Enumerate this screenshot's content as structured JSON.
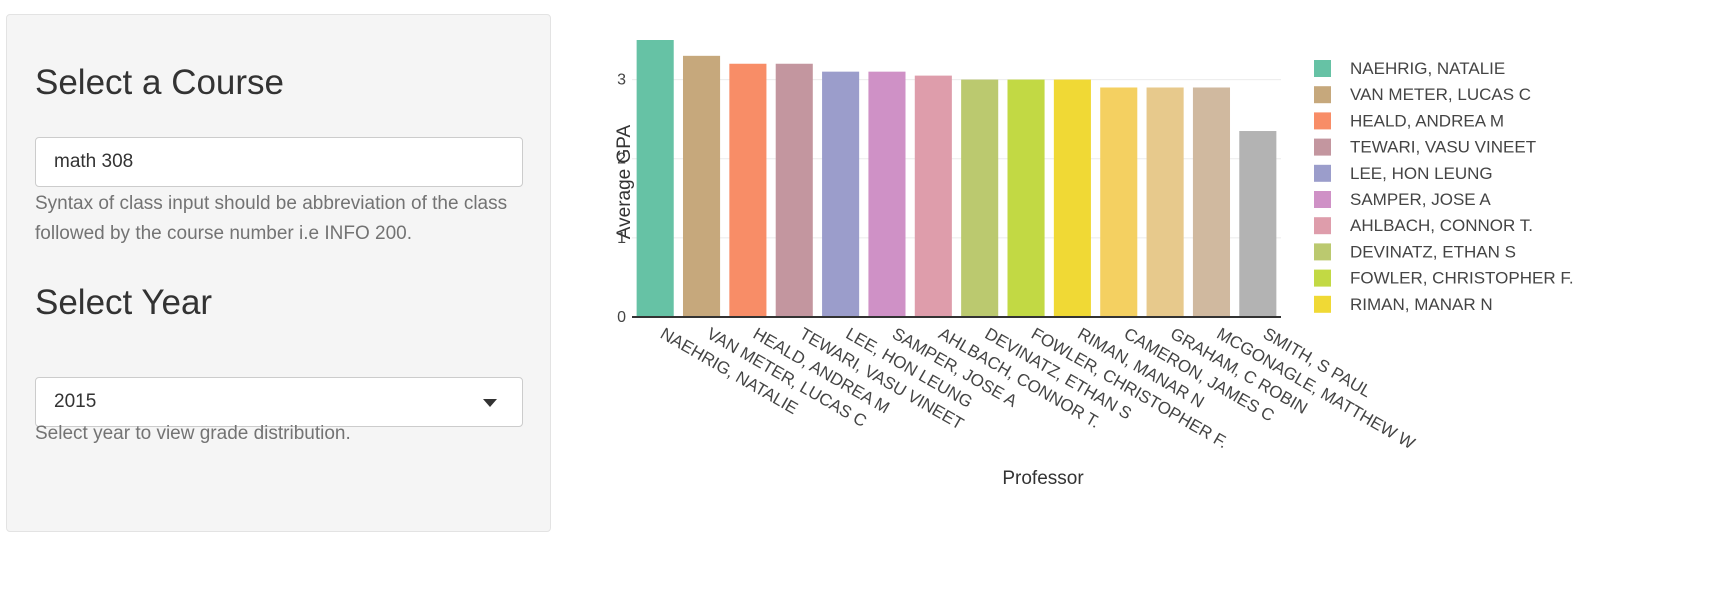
{
  "sidebar": {
    "course_heading": "Select a Course",
    "course_input_value": "math 308",
    "course_help": "Syntax of class input should be abbreviation of the class followed by the course number i.e INFO 200.",
    "year_heading": "Select Year",
    "year_selected": "2015",
    "year_help": "Select year to view grade distribution."
  },
  "chart_data": {
    "type": "bar",
    "xlabel": "Professor",
    "ylabel": "Average GPA",
    "ylim": [
      0,
      3.5
    ],
    "y_ticks": [
      "0",
      "1",
      "2",
      "3"
    ],
    "grid": true,
    "legend_position": "right",
    "categories": [
      "NAEHRIG, NATALIE",
      "VAN METER, LUCAS C",
      "HEALD, ANDREA M",
      "TEWARI, VASU VINEET",
      "LEE, HON LEUNG",
      "SAMPER, JOSE A",
      "AHLBACH, CONNOR T.",
      "DEVINATZ, ETHAN S",
      "FOWLER, CHRISTOPHER F.",
      "RIMAN, MANAR N",
      "CAMERON, JAMES C",
      "GRAHAM, C ROBIN",
      "MCGONAGLE, MATTHEW W",
      "SMITH, S PAUL"
    ],
    "values": [
      3.52,
      3.3,
      3.2,
      3.2,
      3.1,
      3.1,
      3.05,
      3.0,
      3.0,
      3.0,
      2.9,
      2.9,
      2.9,
      2.35
    ],
    "colors": [
      "#66c2a5",
      "#c6a87c",
      "#f88d67",
      "#c3969f",
      "#9b9dcb",
      "#cf91c6",
      "#de9dab",
      "#bbc96f",
      "#c2d944",
      "#f0d935",
      "#f4d061",
      "#e7c98c",
      "#d0b99f",
      "#b3b3b3"
    ],
    "legend_visible": [
      "NAEHRIG, NATALIE",
      "VAN METER, LUCAS C",
      "HEALD, ANDREA M",
      "TEWARI, VASU VINEET",
      "LEE, HON LEUNG",
      "SAMPER, JOSE A",
      "AHLBACH, CONNOR T.",
      "DEVINATZ, ETHAN S",
      "FOWLER, CHRISTOPHER F.",
      "RIMAN, MANAR N"
    ]
  }
}
